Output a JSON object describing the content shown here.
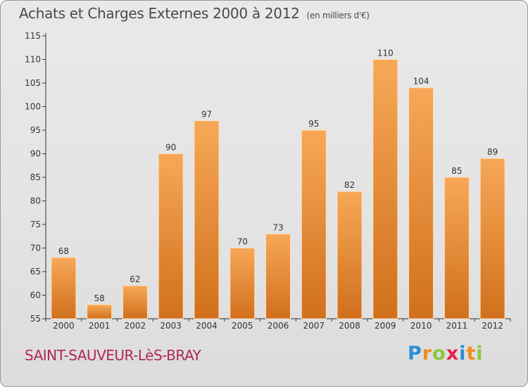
{
  "header": {
    "title": "Achats et Charges Externes 2000 à 2012",
    "subtitle": "(en milliers d'€)"
  },
  "footer": {
    "commune": "SAINT-SAUVEUR-LèS-BRAY",
    "logo": "Proxiti",
    "logo_letters": [
      {
        "ch": "P",
        "color": "#2a8fd6"
      },
      {
        "ch": "r",
        "color": "#f08c1e"
      },
      {
        "ch": "o",
        "color": "#8cc63f"
      },
      {
        "ch": "x",
        "color": "#e6224a"
      },
      {
        "ch": "i",
        "color": "#2a8fd6"
      },
      {
        "ch": "t",
        "color": "#f08c1e"
      },
      {
        "ch": "i",
        "color": "#8cc63f"
      }
    ]
  },
  "colors": {
    "bar_top": "#f7a857",
    "bar_bottom": "#d0701c",
    "bar_edge": "#fbe0c0",
    "commune": "#b02858"
  },
  "chart_data": {
    "type": "bar",
    "title": "Achats et Charges Externes 2000 à 2012",
    "subtitle": "(en milliers d'€)",
    "categories": [
      "2000",
      "2001",
      "2002",
      "2003",
      "2004",
      "2005",
      "2006",
      "2007",
      "2008",
      "2009",
      "2010",
      "2011",
      "2012"
    ],
    "values": [
      68,
      58,
      62,
      90,
      97,
      70,
      73,
      95,
      82,
      110,
      104,
      85,
      89
    ],
    "ylim": [
      55,
      115
    ],
    "yticks": [
      55,
      60,
      65,
      70,
      75,
      80,
      85,
      90,
      95,
      100,
      105,
      110,
      115
    ],
    "grid": false,
    "legend": "none"
  }
}
